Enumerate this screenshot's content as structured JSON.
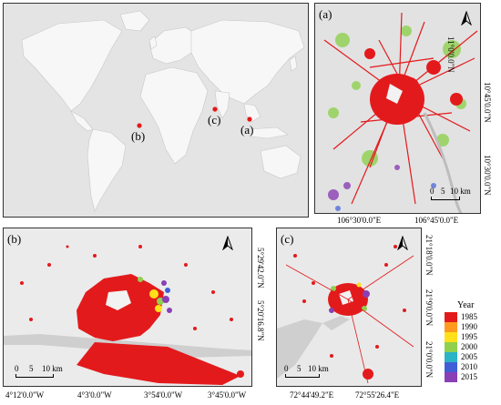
{
  "panels": {
    "a": {
      "label": "(a)",
      "lon_ticks": [
        "106°30'0.0\"E",
        "106°45'0.0\"E"
      ],
      "lat_ticks": [
        "11°0'0.0\"N",
        "10°45'0.0\"N",
        "10°30'0.0\"N"
      ],
      "scale": [
        "0",
        "5",
        "10 km"
      ]
    },
    "b": {
      "label": "(b)",
      "lon_ticks": [
        "4°12'0.0\"W",
        "4°3'0.0\"W",
        "3°54'0.0\"W",
        "3°45'0.0\"W"
      ],
      "lat_ticks": [
        "5°29'42.0\"N",
        "5°20'16.8\"N"
      ],
      "scale": [
        "0",
        "5",
        "10 km"
      ]
    },
    "c": {
      "label": "(c)",
      "lon_ticks": [
        "72°44'49.2\"E",
        "72°55'26.4\"E"
      ],
      "lat_ticks": [
        "21°18'0.0\"N",
        "21°9'0.0\"N",
        "21°0'0.0\"N"
      ],
      "scale": [
        "0",
        "5",
        "10 km"
      ]
    }
  },
  "world_map": {
    "markers": [
      {
        "label": "(a)",
        "color": "#e31a1c"
      },
      {
        "label": "(b)",
        "color": "#e31a1c"
      },
      {
        "label": "(c)",
        "color": "#e31a1c"
      }
    ]
  },
  "legend": {
    "title": "Year",
    "items": [
      {
        "label": "1985",
        "color": "#e31a1c"
      },
      {
        "label": "1990",
        "color": "#ff9a1f"
      },
      {
        "label": "1995",
        "color": "#ffe01a"
      },
      {
        "label": "2000",
        "color": "#8fd14f"
      },
      {
        "label": "2005",
        "color": "#2bb3c6"
      },
      {
        "label": "2010",
        "color": "#3f5fd6"
      },
      {
        "label": "2015",
        "color": "#8a3fb5"
      }
    ]
  },
  "north_arrow": "north-arrow-icon"
}
